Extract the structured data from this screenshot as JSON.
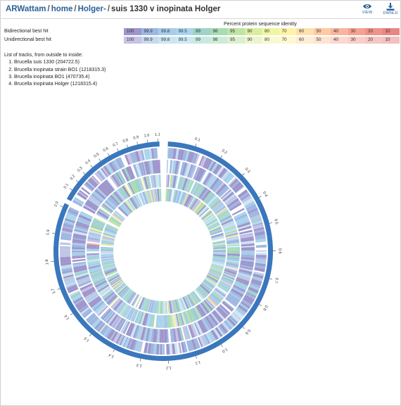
{
  "breadcrumb": {
    "items": [
      "ARWattam",
      "home",
      "Holger-"
    ],
    "separator": "/",
    "current": "suis 1330 v inopinata Holger"
  },
  "actions": {
    "view": {
      "label": "VIEW",
      "icon": "eye-icon"
    },
    "download": {
      "label": "DWNLD",
      "icon": "download-icon"
    }
  },
  "legend": {
    "title": "Percent protein sequence identity",
    "rows": [
      {
        "label": "Bidirectional best hit",
        "cells": [
          "100",
          "99.9",
          "99.8",
          "99.5",
          "99",
          "98",
          "95",
          "90",
          "80",
          "70",
          "60",
          "50",
          "40",
          "30",
          "20",
          "10"
        ],
        "colors": [
          "#9e95cc",
          "#9db7e2",
          "#a7cde9",
          "#a9d6ee",
          "#9ed3c8",
          "#a8dcb3",
          "#c0e3a6",
          "#dbed9f",
          "#eff5a3",
          "#fff3a6",
          "#fde0ae",
          "#fdcaa4",
          "#f9b59f",
          "#f4a391",
          "#ee928a",
          "#e98585"
        ]
      },
      {
        "label": "Unidirectional best hit",
        "cells": [
          "100",
          "99.9",
          "99.8",
          "99.5",
          "99",
          "98",
          "95",
          "90",
          "80",
          "70",
          "60",
          "50",
          "40",
          "30",
          "20",
          "10"
        ],
        "colors": [
          "#c8c2e5",
          "#c7d9f0",
          "#cde4f3",
          "#cde9f6",
          "#c9e8e2",
          "#cdebd6",
          "#dcf0cf",
          "#ebf5cd",
          "#f7fad0",
          "#fff8d0",
          "#feedd4",
          "#fee3d0",
          "#fcd8ce",
          "#f9cfc7",
          "#f6c6c3",
          "#f4bfbf"
        ]
      }
    ]
  },
  "tracks": {
    "heading": "List of tracks, from outside to inside:",
    "items": [
      "Brucella suis 1330 (204722.5)",
      "Brucella inopinata strain BO1 (1218315.3)",
      "Brucella inopinata BO1 (470735.4)",
      "Brucella inopinata Holger (1218315.4)"
    ]
  },
  "plot": {
    "ticks_contig1": [
      "0.1",
      "0.2",
      "0.3",
      "0.4",
      "0.5",
      "0.6",
      "0.7",
      "0.8",
      "0.9",
      "1.0",
      "1.1",
      "1.2",
      "1.3",
      "1.4",
      "1.5",
      "1.6",
      "1.7",
      "1.8",
      "1.9",
      "2.0"
    ],
    "ticks_contig2": [
      "0.1",
      "0.2",
      "0.3",
      "0.4",
      "0.5",
      "0.6",
      "0.7",
      "0.8",
      "0.9",
      "1.0",
      "1.1"
    ],
    "axis_color": "#3a77bd"
  }
}
